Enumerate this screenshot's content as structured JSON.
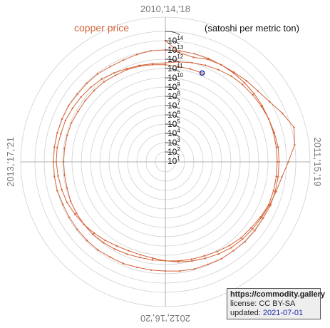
{
  "colors": {
    "series": "#d4643a",
    "grid": "#d0d0d0",
    "axis": "#999999",
    "marker": "#1a2aa8",
    "label": "#777777"
  },
  "info": {
    "site": "https://commodity.gallery",
    "license": "license: CC BY-SA",
    "updated_prefix": "updated: ",
    "updated_date": "2021-07-01"
  },
  "chart_data": {
    "type": "line",
    "projection": "polar",
    "title": "",
    "series": [
      {
        "name": "copper price",
        "points_log10": [
          13.0,
          11.8,
          11.6,
          11.9,
          12.0,
          12.1,
          12.3,
          12.5,
          12.9,
          13.6,
          14.3,
          14.0,
          13.2,
          12.6,
          12.3,
          12.1,
          11.9,
          11.8,
          11.7,
          11.6,
          11.4,
          11.2,
          11.0,
          10.8,
          10.6,
          10.4,
          10.3,
          10.3,
          10.4,
          10.6,
          10.8,
          11.0,
          11.2,
          11.4,
          11.5,
          11.6,
          11.7,
          11.7,
          11.6,
          11.6,
          11.5,
          11.4,
          11.3,
          11.2,
          11.0,
          10.8,
          10.7,
          10.6,
          10.6,
          10.8,
          11.0,
          11.2,
          11.4,
          11.6,
          11.7,
          11.8,
          11.9,
          12.0,
          12.1,
          12.2,
          12.2,
          12.2,
          12.2,
          12.2,
          12.1,
          12.1,
          12.1,
          12.0,
          12.0,
          11.9,
          11.9,
          11.8,
          11.7,
          11.7,
          11.7,
          11.8,
          11.8,
          11.9,
          11.9,
          11.9,
          11.9,
          11.9,
          12.0,
          12.0,
          12.0,
          12.0,
          12.0,
          12.0,
          12.0,
          11.9,
          11.9,
          11.9,
          11.8,
          11.8,
          11.9,
          12.0,
          12.0,
          12.0,
          12.0,
          12.0,
          12.0,
          12.0,
          12.0,
          12.0,
          12.0,
          12.0,
          12.0,
          12.0,
          12.0,
          12.0,
          12.0,
          12.0,
          11.8,
          11.6,
          11.5,
          11.3,
          11.1,
          10.9,
          10.8,
          10.7,
          10.6,
          10.6,
          10.6,
          10.7,
          10.8,
          10.9,
          11.0,
          11.0,
          11.0,
          11.0,
          10.9,
          10.9,
          10.9,
          10.9,
          10.9,
          10.9,
          10.8,
          10.8,
          10.8,
          10.8,
          10.7,
          10.7,
          10.6,
          10.5,
          10.4,
          10.3,
          10.3,
          10.3
        ]
      }
    ],
    "angle_labels": [
      "2010,'14,'18",
      "2011,'15,'19",
      "2012,'16,'20",
      "2013,'17,'21"
    ],
    "radial_ticks": [
      "10",
      "10",
      "10",
      "10",
      "10",
      "10",
      "10",
      "10",
      "10",
      "10",
      "10",
      "10",
      "10",
      "10"
    ],
    "radial_tick_exponents": [
      "1",
      "2",
      "3",
      "4",
      "5",
      "6",
      "7",
      "8",
      "9",
      "10",
      "11",
      "12",
      "13",
      "14"
    ],
    "unit_label": "(satoshi per metric ton)",
    "start": "2010",
    "end": "2021-07-01",
    "months_per_turn": 48,
    "end_marker": "circle"
  }
}
